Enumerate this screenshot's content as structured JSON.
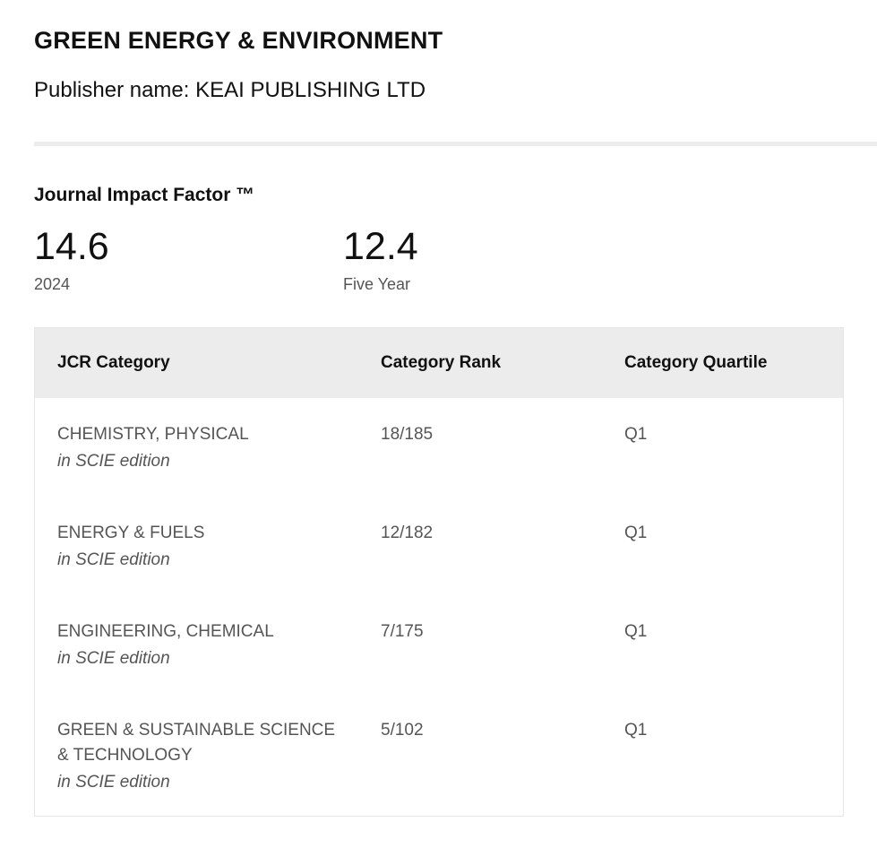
{
  "journal": {
    "title": "GREEN ENERGY & ENVIRONMENT",
    "publisher": "Publisher name: KEAI PUBLISHING LTD"
  },
  "impact_factor": {
    "heading": "Journal Impact Factor ™",
    "current": {
      "value": "14.6",
      "label": "2024"
    },
    "five_year": {
      "value": "12.4",
      "label": "Five Year"
    }
  },
  "table": {
    "headers": {
      "category": "JCR Category",
      "rank": "Category Rank",
      "quartile": "Category Quartile"
    },
    "rows": [
      {
        "category": "CHEMISTRY, PHYSICAL",
        "edition": "in SCIE edition",
        "rank": "18/185",
        "quartile": "Q1"
      },
      {
        "category": "ENERGY & FUELS",
        "edition": "in SCIE edition",
        "rank": "12/182",
        "quartile": "Q1"
      },
      {
        "category": "ENGINEERING, CHEMICAL",
        "edition": "in SCIE edition",
        "rank": "7/175",
        "quartile": "Q1"
      },
      {
        "category": "GREEN & SUSTAINABLE SCIENCE & TECHNOLOGY",
        "edition": "in SCIE edition",
        "rank": "5/102",
        "quartile": "Q1"
      }
    ]
  }
}
